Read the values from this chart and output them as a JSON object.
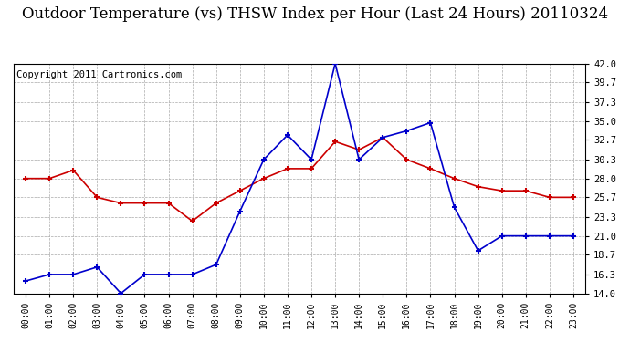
{
  "title": "Outdoor Temperature (vs) THSW Index per Hour (Last 24 Hours) 20110324",
  "copyright": "Copyright 2011 Cartronics.com",
  "hours": [
    "00:00",
    "01:00",
    "02:00",
    "03:00",
    "04:00",
    "05:00",
    "06:00",
    "07:00",
    "08:00",
    "09:00",
    "10:00",
    "11:00",
    "12:00",
    "13:00",
    "14:00",
    "15:00",
    "16:00",
    "17:00",
    "18:00",
    "19:00",
    "20:00",
    "21:00",
    "22:00",
    "23:00"
  ],
  "temp_red": [
    28.0,
    28.0,
    29.0,
    25.7,
    25.0,
    25.0,
    25.0,
    22.8,
    25.0,
    26.5,
    28.0,
    29.2,
    29.2,
    32.5,
    31.5,
    33.0,
    30.3,
    29.2,
    28.0,
    27.0,
    26.5,
    26.5,
    25.7,
    25.7
  ],
  "thsw_blue": [
    15.5,
    16.3,
    16.3,
    17.2,
    14.0,
    16.3,
    16.3,
    16.3,
    17.5,
    24.0,
    30.3,
    33.3,
    30.3,
    42.0,
    30.3,
    33.0,
    33.8,
    34.8,
    24.5,
    19.2,
    21.0,
    21.0,
    21.0,
    21.0
  ],
  "y_ticks": [
    14.0,
    16.3,
    18.7,
    21.0,
    23.3,
    25.7,
    28.0,
    30.3,
    32.7,
    35.0,
    37.3,
    39.7,
    42.0
  ],
  "ylim": [
    14.0,
    42.0
  ],
  "bg_color": "#ffffff",
  "plot_bg_color": "#ffffff",
  "grid_color": "#aaaaaa",
  "red_color": "#cc0000",
  "blue_color": "#0000cc",
  "title_fontsize": 12,
  "copyright_fontsize": 7.5
}
